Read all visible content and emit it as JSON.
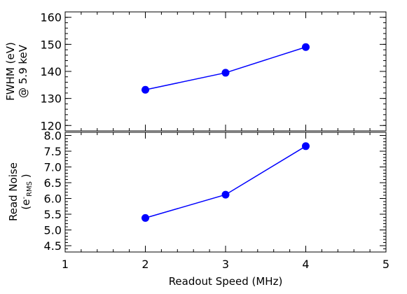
{
  "chart_data": [
    {
      "type": "line",
      "x": [
        2,
        3,
        4
      ],
      "series": [
        {
          "values": [
            133.2,
            139.5,
            149.0
          ]
        }
      ],
      "ylabel_line1": "FWHM (eV)",
      "ylabel_line2": "@ 5.9 keV",
      "xlim": [
        1,
        5
      ],
      "ylim": [
        118,
        162
      ],
      "yticks": [
        "120",
        "130",
        "140",
        "150",
        "160"
      ],
      "ytick_values": [
        120,
        130,
        140,
        150,
        160
      ],
      "grid": false,
      "color": "#0000ff"
    },
    {
      "type": "line",
      "x": [
        2,
        3,
        4
      ],
      "series": [
        {
          "values": [
            5.38,
            6.12,
            7.66
          ]
        }
      ],
      "ylabel_line1": "Read Noise",
      "ylabel_e": "e",
      "ylabel_e_sup": "-",
      "ylabel_e_sub": "RMS",
      "xlabel": "Readout Speed (MHz)",
      "xlim": [
        1,
        5
      ],
      "ylim": [
        4.3,
        8.1
      ],
      "xticks": [
        "1",
        "2",
        "3",
        "4",
        "5"
      ],
      "xtick_values": [
        1,
        2,
        3,
        4,
        5
      ],
      "yticks": [
        "4.5",
        "5.0",
        "5.5",
        "6.0",
        "6.5",
        "7.0",
        "7.5",
        "8.0"
      ],
      "ytick_values": [
        4.5,
        5.0,
        5.5,
        6.0,
        6.5,
        7.0,
        7.5,
        8.0
      ],
      "grid": false,
      "color": "#0000ff"
    }
  ]
}
